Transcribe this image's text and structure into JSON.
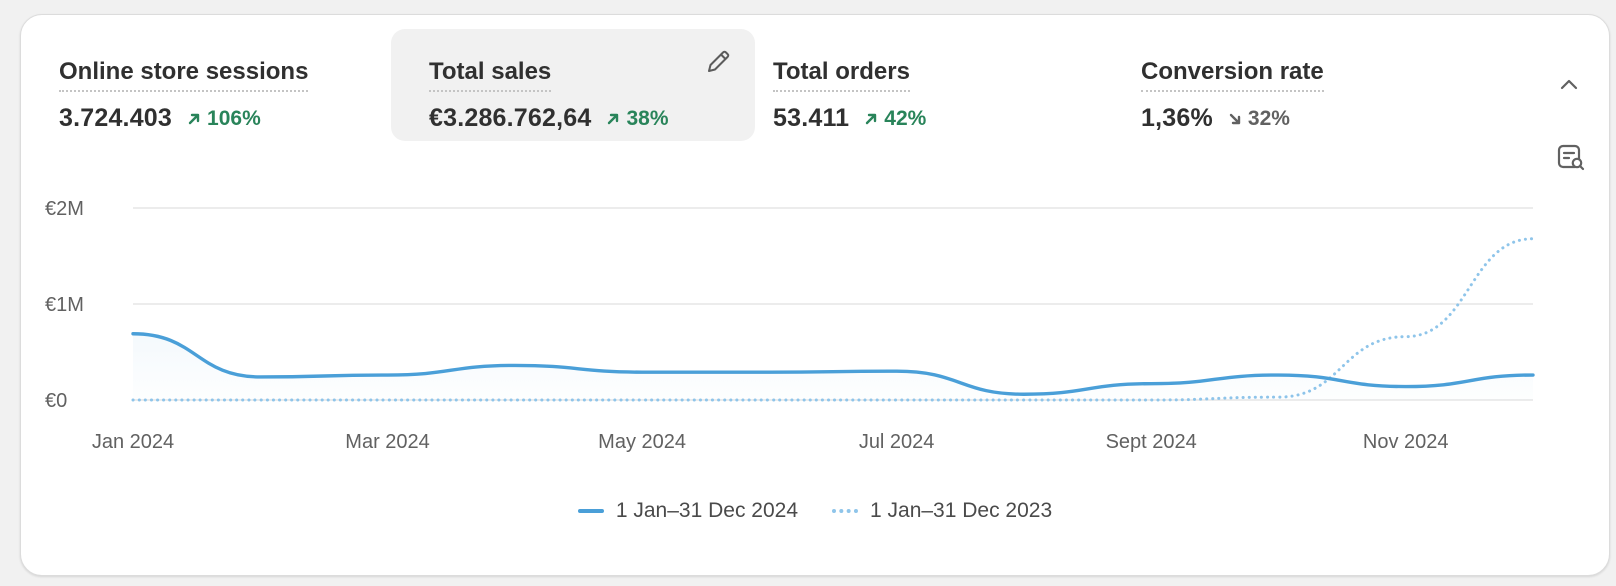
{
  "metrics": [
    {
      "title": "Online store sessions",
      "value": "3.724.403",
      "delta": "106%",
      "direction": "up"
    },
    {
      "title": "Total sales",
      "value": "€3.286.762,64",
      "delta": "38%",
      "direction": "up"
    },
    {
      "title": "Total orders",
      "value": "53.411",
      "delta": "42%",
      "direction": "up"
    },
    {
      "title": "Conversion rate",
      "value": "1,36%",
      "delta": "32%",
      "direction": "down"
    }
  ],
  "icons": {
    "edit": "pencil-icon",
    "collapse": "chevron-up-icon",
    "report": "report-search-icon"
  },
  "colors": {
    "positive": "#29845a",
    "neutral": "#616161",
    "series_current": "#4a9fd8",
    "series_previous": "#8fc5ea"
  },
  "chart_data": {
    "type": "line",
    "title": "",
    "y_ticks": [
      "€2M",
      "€1M",
      "€0"
    ],
    "y_tick_values": [
      2000000,
      1000000,
      0
    ],
    "ylim": [
      0,
      2000000
    ],
    "x_ticks": [
      "Jan 2024",
      "Mar 2024",
      "May 2024",
      "Jul 2024",
      "Sept 2024",
      "Nov 2024"
    ],
    "x": [
      "Jan 2024",
      "Feb 2024",
      "Mar 2024",
      "Apr 2024",
      "May 2024",
      "Jun 2024",
      "Jul 2024",
      "Aug 2024",
      "Sep 2024",
      "Oct 2024",
      "Nov 2024",
      "Dec 2024"
    ],
    "grid": true,
    "legend_position": "bottom",
    "series": [
      {
        "name": "1 Jan–31 Dec 2024",
        "style": "solid",
        "values": [
          690000,
          240000,
          260000,
          360000,
          290000,
          290000,
          300000,
          60000,
          170000,
          260000,
          140000,
          260000
        ]
      },
      {
        "name": "1 Jan–31 Dec 2023",
        "style": "dotted",
        "values": [
          0,
          0,
          0,
          0,
          0,
          0,
          0,
          0,
          0,
          30000,
          660000,
          1680000
        ]
      }
    ]
  }
}
